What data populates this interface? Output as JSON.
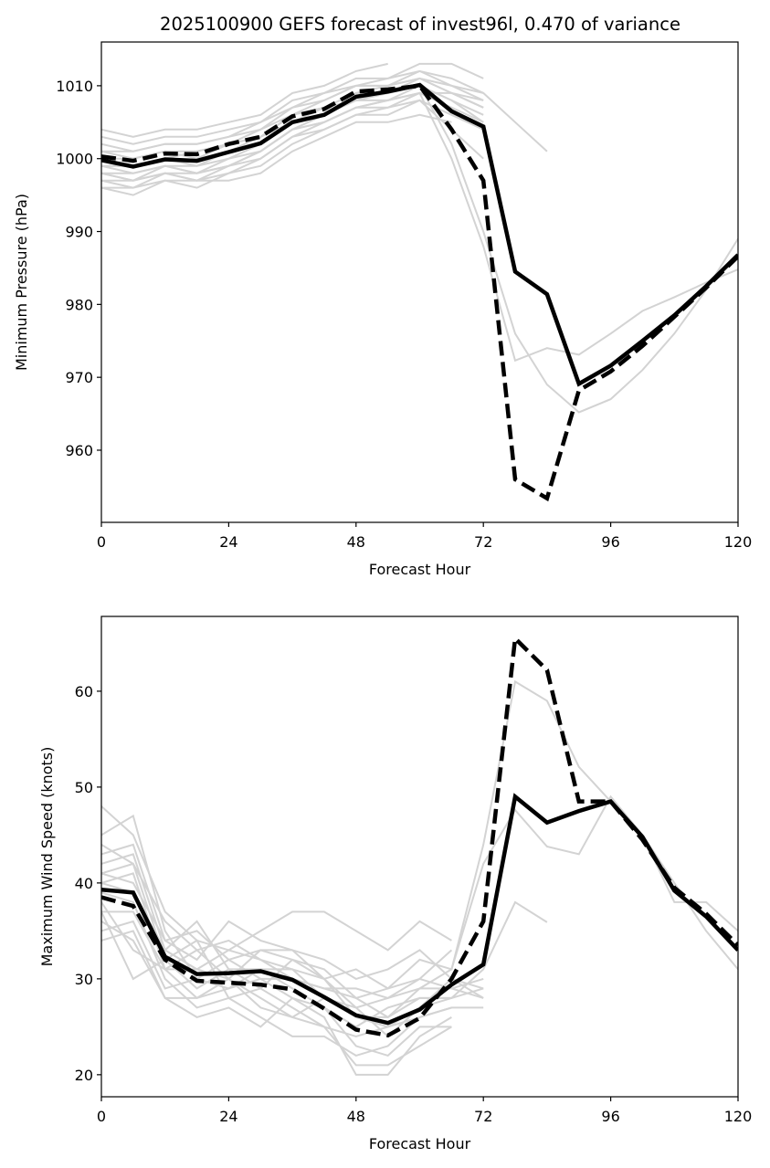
{
  "title": "2025100900 GEFS forecast of invest96l, 0.470 of variance",
  "colors": {
    "member": "#d3d3d3",
    "main": "#000000"
  },
  "chart_data": [
    {
      "type": "line",
      "xlabel": "Forecast Hour",
      "ylabel": "Minimum Pressure (hPa)",
      "xlim": [
        0,
        120
      ],
      "ylim": [
        950.1,
        1016.0
      ],
      "xticks": [
        0,
        24,
        48,
        72,
        96,
        120
      ],
      "xtick_labels": [
        "0",
        "24",
        "48",
        "72",
        "96",
        "120"
      ],
      "yticks": [
        960,
        970,
        980,
        990,
        1000,
        1010
      ],
      "ytick_labels": [
        "960",
        "970",
        "980",
        "990",
        "1000",
        "1010"
      ],
      "grid": false,
      "x": [
        0,
        6,
        12,
        18,
        24,
        30,
        36,
        42,
        48,
        54,
        60,
        66,
        72,
        78,
        84,
        90,
        96,
        102,
        108,
        114,
        120
      ],
      "series": [
        {
          "name": "solid",
          "style": "solid",
          "values": [
            999.8,
            998.9,
            999.9,
            999.7,
            1000.9,
            1002.1,
            1005.0,
            1006.0,
            1008.5,
            1009.2,
            1010.1,
            1006.5,
            1004.4,
            984.5,
            981.4,
            969.1,
            971.6,
            975.0,
            978.5,
            982.5,
            986.8
          ]
        },
        {
          "name": "dashed",
          "style": "dashed",
          "values": [
            1000.3,
            999.7,
            1000.7,
            1000.6,
            1002.0,
            1003.0,
            1005.8,
            1006.8,
            1009.2,
            1009.5,
            1010.0,
            1004.0,
            997.0,
            956.0,
            953.4,
            968.2,
            970.8,
            974.3,
            978.3,
            982.3,
            986.6
          ]
        }
      ],
      "members": [
        [
          1004.0,
          1003.0,
          1004.0,
          1004.0,
          1005.0,
          1006.0,
          1009.0,
          1010.0,
          1012.0,
          1013.0
        ],
        [
          1003.0,
          1002.0,
          1003.0,
          1003.0,
          1004.0,
          1005.0,
          1008.0,
          1009.0,
          1011.0,
          1011.0,
          1013.0,
          1013.0,
          1011.0
        ],
        [
          1002.0,
          1001.0,
          1002.0,
          1002.0,
          1003.0,
          1005.0,
          1007.0,
          1009.0,
          1010.0,
          1010.0,
          1012.0,
          1011.0,
          1009.0,
          1005.0,
          1001.0
        ],
        [
          1001.0,
          1000.0,
          1001.0,
          1001.0,
          1002.0,
          1004.0,
          1006.0,
          1008.0,
          1010.0,
          1011.0,
          1012.0,
          1010.0,
          1008.0
        ],
        [
          1000.0,
          1000.0,
          1001.0,
          1000.0,
          1002.0,
          1003.0,
          1006.0,
          1007.0,
          1009.0,
          1010.0,
          1011.0,
          1009.0,
          1007.0
        ],
        [
          999.0,
          999.0,
          1000.0,
          999.0,
          1001.0,
          1003.0,
          1005.0,
          1007.0,
          1009.0,
          1009.0,
          1011.0,
          1010.0,
          1009.0
        ],
        [
          999.0,
          998.0,
          999.0,
          999.0,
          1000.0,
          1002.0,
          1005.0,
          1006.0,
          1008.0,
          1009.0,
          1010.0,
          1008.0,
          1006.0
        ],
        [
          998.0,
          998.0,
          999.0,
          998.0,
          1000.0,
          1001.0,
          1004.0,
          1006.0,
          1008.0,
          1008.0,
          1010.0,
          1002.0,
          990.0,
          976.0,
          969.0,
          965.2,
          967.0,
          971.0,
          976.0,
          982.0,
          989.0
        ],
        [
          998.0,
          997.0,
          998.0,
          998.0,
          999.0,
          1001.0,
          1004.0,
          1005.0,
          1007.0,
          1008.0,
          1009.0,
          1000.0,
          988.0,
          972.3,
          974.0,
          973.1,
          976.0,
          979.1,
          981.0,
          983.0,
          984.8
        ],
        [
          997.0,
          997.0,
          998.0,
          997.0,
          999.0,
          1000.0,
          1003.0,
          1005.0,
          1007.0,
          1007.0,
          1009.0,
          1007.0,
          1005.0
        ],
        [
          997.0,
          996.0,
          998.0,
          997.0,
          998.0,
          1000.0,
          1003.0,
          1004.0,
          1006.0,
          1007.0,
          1008.0,
          1004.0,
          1000.0
        ],
        [
          996.0,
          996.0,
          997.0,
          996.0,
          998.0,
          999.0,
          1002.0,
          1004.0,
          1006.0,
          1006.0,
          1008.0,
          1006.0,
          1004.0
        ],
        [
          996.0,
          995.0,
          997.0,
          997.0,
          997.0,
          998.0,
          1001.0,
          1003.0,
          1005.0,
          1005.0,
          1006.0,
          1005.0
        ],
        [
          1001.0,
          1001.0,
          1002.0,
          1002.0,
          1003.0,
          1004.0,
          1007.0,
          1008.0,
          1010.0,
          1010.0,
          1011.0,
          1009.0,
          1008.0
        ],
        [
          1000.0,
          999.0,
          1000.0,
          1001.0,
          1002.0,
          1003.0,
          1006.0,
          1007.0,
          1008.0,
          1009.0,
          1010.0,
          1008.0,
          1005.0
        ],
        [
          998.0,
          997.0,
          999.0,
          998.0,
          999.0,
          1001.0,
          1004.0,
          1005.0,
          1007.0,
          1008.0,
          1009.0,
          1009.0,
          1007.0
        ]
      ]
    },
    {
      "type": "line",
      "xlabel": "Forecast Hour",
      "ylabel": "Maximum Wind Speed (knots)",
      "xlim": [
        0,
        120
      ],
      "ylim": [
        17.7,
        67.8
      ],
      "xticks": [
        0,
        24,
        48,
        72,
        96,
        120
      ],
      "xtick_labels": [
        "0",
        "24",
        "48",
        "72",
        "96",
        "120"
      ],
      "yticks": [
        20,
        30,
        40,
        50,
        60
      ],
      "ytick_labels": [
        "20",
        "30",
        "40",
        "50",
        "60"
      ],
      "grid": false,
      "x": [
        0,
        6,
        12,
        18,
        24,
        30,
        36,
        42,
        48,
        54,
        60,
        66,
        72,
        78,
        84,
        90,
        96,
        102,
        108,
        114,
        120
      ],
      "series": [
        {
          "name": "solid",
          "style": "solid",
          "values": [
            39.3,
            39.0,
            32.3,
            30.5,
            30.6,
            30.8,
            29.9,
            28.1,
            26.2,
            25.4,
            26.8,
            29.4,
            31.5,
            49.0,
            46.3,
            47.5,
            48.5,
            44.8,
            39.2,
            36.5,
            33.0
          ]
        },
        {
          "name": "dashed",
          "style": "dashed",
          "values": [
            38.5,
            37.6,
            32.0,
            29.8,
            29.6,
            29.4,
            28.9,
            26.9,
            24.7,
            24.1,
            25.9,
            30.0,
            36.0,
            65.5,
            62.2,
            48.5,
            48.5,
            44.5,
            39.5,
            36.8,
            33.5
          ]
        }
      ],
      "members": [
        [
          48.0,
          45.0,
          37.0,
          34.0,
          33.0,
          35.0,
          37.0,
          37.0,
          35.0,
          33.0,
          36.0,
          34.0
        ],
        [
          45.0,
          47.0,
          35.0,
          30.0,
          32.0,
          33.0,
          32.0,
          30.0,
          31.0,
          29.0,
          30.0,
          33.0
        ],
        [
          43.0,
          44.0,
          34.0,
          32.0,
          36.0,
          34.0,
          33.0,
          32.0,
          30.0,
          31.0,
          33.0,
          30.0,
          29.0
        ],
        [
          42.0,
          43.0,
          33.0,
          31.0,
          33.0,
          32.0,
          30.0,
          29.0,
          28.0,
          29.0,
          32.0,
          31.0,
          44.0,
          61.0,
          59.0,
          52.1,
          48.5,
          45.0,
          38.0,
          38.0,
          35.0
        ],
        [
          41.0,
          42.0,
          32.0,
          29.0,
          31.0,
          31.0,
          31.0,
          28.0,
          27.0,
          28.0,
          29.0,
          31.0,
          42.0,
          47.6,
          43.8,
          43.0,
          49.0,
          45.0,
          40.0,
          35.0,
          31.0
        ],
        [
          40.0,
          41.0,
          31.0,
          28.0,
          29.0,
          30.0,
          28.0,
          27.0,
          25.0,
          27.0,
          28.0,
          28.0,
          31.0,
          38.0,
          35.9
        ],
        [
          39.0,
          38.0,
          30.0,
          27.0,
          28.0,
          29.0,
          27.0,
          25.0,
          24.0,
          25.0,
          27.0,
          28.0,
          29.0
        ],
        [
          38.0,
          33.0,
          31.0,
          33.0,
          30.0,
          27.0,
          26.0,
          28.0,
          26.0,
          26.0,
          29.0,
          29.0,
          28.0
        ],
        [
          37.0,
          30.0,
          32.0,
          34.0,
          28.0,
          26.0,
          24.0,
          24.0,
          22.0,
          23.0,
          26.0,
          27.0,
          27.0
        ],
        [
          36.0,
          34.0,
          28.0,
          26.0,
          27.0,
          25.0,
          28.0,
          26.0,
          20.0,
          20.0,
          24.0,
          26.0
        ],
        [
          35.0,
          36.0,
          29.0,
          30.0,
          29.0,
          31.0,
          29.0,
          27.0,
          23.0,
          22.0,
          25.0,
          25.0
        ],
        [
          34.0,
          35.0,
          28.0,
          28.0,
          30.0,
          28.0,
          26.0,
          25.0,
          21.0,
          21.0,
          23.0,
          25.0
        ],
        [
          41.0,
          40.0,
          34.0,
          35.0,
          32.0,
          30.0,
          30.0,
          29.0,
          29.0,
          28.0,
          30.0,
          29.0,
          30.0
        ],
        [
          44.0,
          42.0,
          36.0,
          33.0,
          34.0,
          32.0,
          31.0,
          30.0,
          27.0,
          24.0,
          27.0,
          30.0,
          28.0
        ],
        [
          40.0,
          39.0,
          33.0,
          36.0,
          31.0,
          29.0,
          32.0,
          31.0,
          28.0,
          26.0,
          28.0,
          28.0
        ],
        [
          37.0,
          37.0,
          31.0,
          31.0,
          30.0,
          33.0,
          33.0,
          30.0,
          26.0,
          25.0,
          26.0,
          27.0
        ]
      ]
    }
  ]
}
